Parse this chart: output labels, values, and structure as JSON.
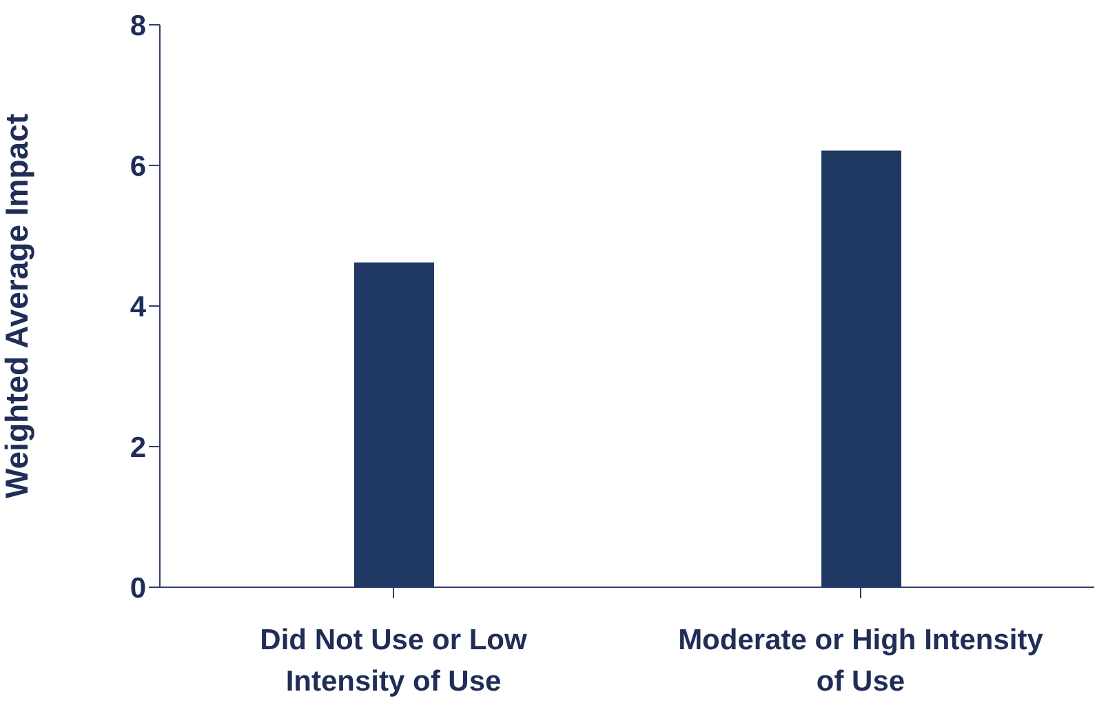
{
  "chart_data": {
    "type": "bar",
    "ylabel": "Weighted Average Impact",
    "categories": [
      "Did Not Use or Low Intensity of Use",
      "Moderate or High Intensity of Use"
    ],
    "values": [
      4.62,
      6.21
    ],
    "color": "#203864",
    "ylim": [
      0,
      8
    ],
    "yticks": [
      0,
      2,
      4,
      6,
      8
    ],
    "grid": false,
    "legend": false
  }
}
